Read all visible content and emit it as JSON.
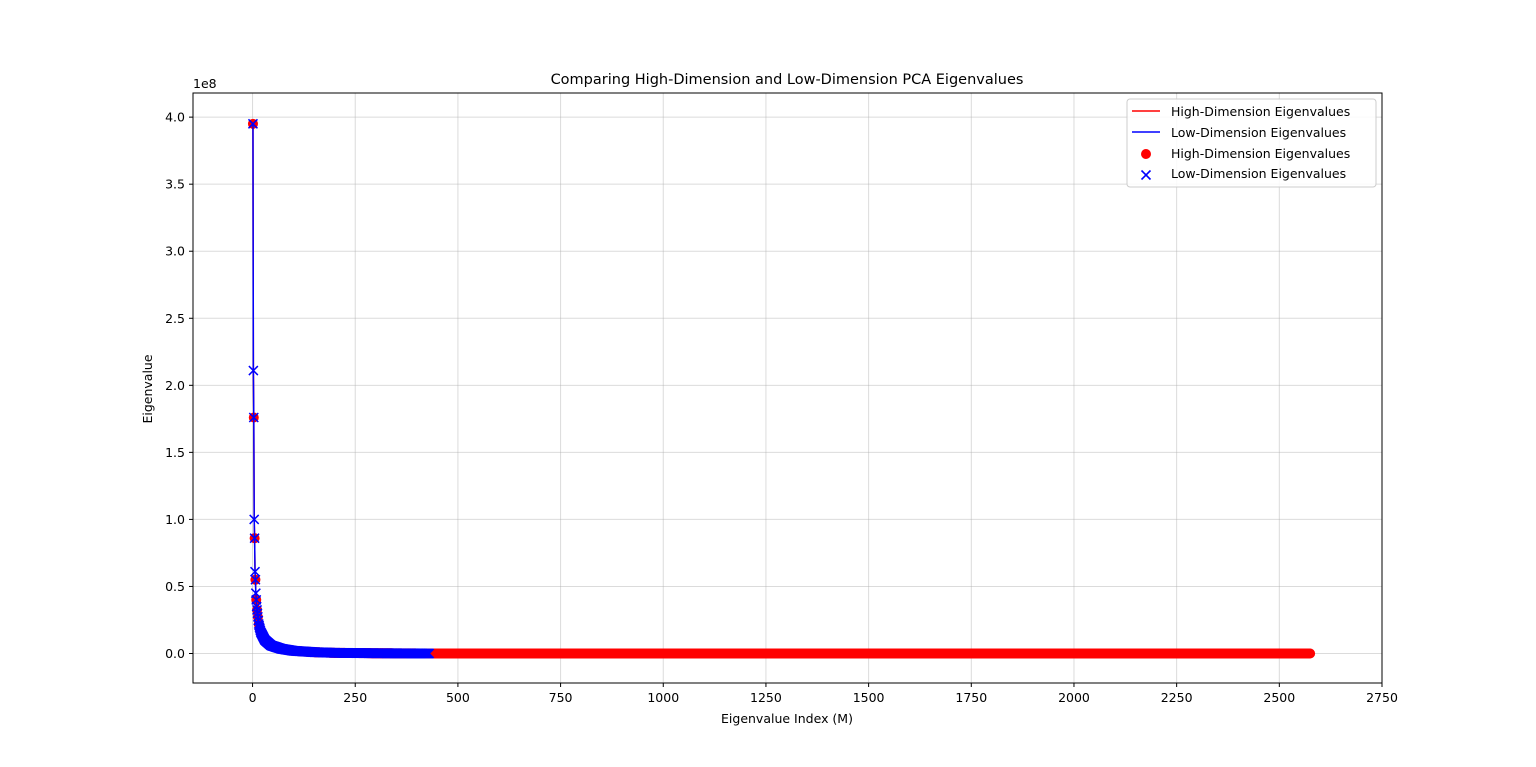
{
  "chart_data": {
    "type": "scatter",
    "title": "Comparing High-Dimension and Low-Dimension PCA Eigenvalues",
    "xlabel": "Eigenvalue Index (M)",
    "ylabel": "Eigenvalue",
    "y_offset_label": "1e8",
    "y_scale": 100000000,
    "xlim": [
      -145,
      2750
    ],
    "ylim": [
      -0.22,
      4.18
    ],
    "x_ticks": [
      0,
      250,
      500,
      750,
      1000,
      1250,
      1500,
      1750,
      2000,
      2250,
      2500,
      2750
    ],
    "x_tick_labels": [
      "0",
      "250",
      "500",
      "750",
      "1000",
      "1250",
      "1500",
      "1750",
      "2000",
      "2250",
      "2500",
      "2750"
    ],
    "y_ticks": [
      0.0,
      0.5,
      1.0,
      1.5,
      2.0,
      2.5,
      3.0,
      3.5,
      4.0
    ],
    "y_tick_labels": [
      "0.0",
      "0.5",
      "1.0",
      "1.5",
      "2.0",
      "2.5",
      "3.0",
      "3.5",
      "4.0"
    ],
    "grid": true,
    "legend_position": "top-right",
    "legend": [
      {
        "label": "High-Dimension Eigenvalues",
        "marker": "line",
        "color": "#ff0000"
      },
      {
        "label": "Low-Dimension Eigenvalues",
        "marker": "line",
        "color": "#0000ff"
      },
      {
        "label": "High-Dimension Eigenvalues",
        "marker": "circle",
        "color": "#ff0000"
      },
      {
        "label": "Low-Dimension Eigenvalues",
        "marker": "x",
        "color": "#0000ff"
      }
    ],
    "series": [
      {
        "name": "High-Dimension Eigenvalues",
        "color": "#ff0000",
        "style": "line+circle",
        "points": [
          [
            1,
            3.95
          ],
          [
            2,
            2.11
          ],
          [
            3,
            1.76
          ],
          [
            4,
            1.0
          ],
          [
            5,
            0.86
          ],
          [
            6,
            0.61
          ],
          [
            7,
            0.55
          ],
          [
            8,
            0.45
          ],
          [
            10,
            0.35
          ],
          [
            12,
            0.3
          ],
          [
            15,
            0.22
          ],
          [
            20,
            0.16
          ],
          [
            30,
            0.1
          ],
          [
            45,
            0.06
          ],
          [
            70,
            0.035
          ],
          [
            100,
            0.02
          ],
          [
            150,
            0.01
          ],
          [
            200,
            0.005
          ],
          [
            300,
            0.002
          ],
          [
            430,
            0.0
          ],
          [
            2576,
            0.0
          ]
        ]
      },
      {
        "name": "Low-Dimension Eigenvalues",
        "color": "#0000ff",
        "style": "line+x",
        "points": [
          [
            1,
            3.95
          ],
          [
            2,
            2.11
          ],
          [
            3,
            1.76
          ],
          [
            4,
            1.0
          ],
          [
            5,
            0.86
          ],
          [
            6,
            0.61
          ],
          [
            7,
            0.55
          ],
          [
            8,
            0.45
          ],
          [
            10,
            0.35
          ],
          [
            12,
            0.3
          ],
          [
            15,
            0.22
          ],
          [
            20,
            0.16
          ],
          [
            30,
            0.1
          ],
          [
            45,
            0.06
          ],
          [
            70,
            0.035
          ],
          [
            100,
            0.02
          ],
          [
            150,
            0.01
          ],
          [
            200,
            0.005
          ],
          [
            300,
            0.002
          ],
          [
            430,
            0.0
          ]
        ]
      }
    ]
  }
}
